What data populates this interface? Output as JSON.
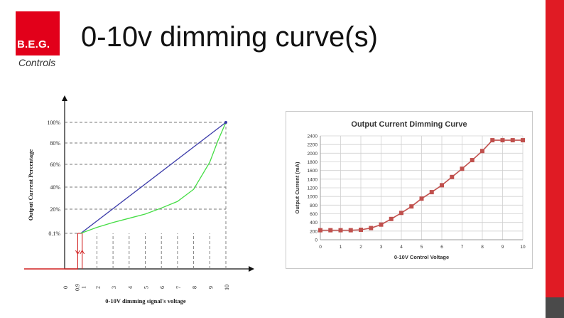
{
  "header": {
    "title": "0-10v dimming curve(s)",
    "logo_text": "B.E.G.",
    "logo_sub": "Controls"
  },
  "colors": {
    "accent": "#e01b24",
    "sidebar_bottom": "#4a4a4a",
    "linear": "#3a3aa8",
    "curve": "#44dd44",
    "marker": "#c0504d"
  },
  "chart_data": [
    {
      "type": "line",
      "xlabel": "0-10V dimming signal's voltage",
      "ylabel": "Output Current Percentage",
      "x_ticks": [
        "0",
        "0.9",
        "1",
        "2",
        "3",
        "4",
        "5",
        "6",
        "7",
        "8",
        "9",
        "10"
      ],
      "y_ticks": [
        "0.1%",
        "20%",
        "40%",
        "60%",
        "80%",
        "100%"
      ],
      "series": [
        {
          "color": "#3a3aa8",
          "x": [
            1,
            10
          ],
          "y": [
            0.1,
            100
          ]
        },
        {
          "color": "#44dd44",
          "x": [
            1,
            2,
            3,
            4,
            5,
            6,
            7,
            8,
            9,
            9.5,
            10
          ],
          "y": [
            0.1,
            5,
            9,
            12.5,
            16,
            21,
            27,
            38,
            62,
            82,
            100
          ]
        }
      ]
    },
    {
      "type": "line",
      "title": "Output Current Dimming Curve",
      "xlabel": "0-10V Control Voltage",
      "ylabel": "Output Current (mA)",
      "xlim": [
        0,
        10
      ],
      "ylim": [
        0,
        2400
      ],
      "x_ticks": [
        "0",
        "1",
        "2",
        "3",
        "4",
        "5",
        "6",
        "7",
        "8",
        "9",
        "10"
      ],
      "y_ticks": [
        "0",
        "200",
        "400",
        "600",
        "800",
        "1000",
        "1200",
        "1400",
        "1600",
        "1800",
        "2000",
        "2200",
        "2400"
      ],
      "series": [
        {
          "color": "#c0504d",
          "x": [
            0,
            0.5,
            1,
            1.5,
            2,
            2.5,
            3,
            3.5,
            4,
            4.5,
            5,
            5.5,
            6,
            6.5,
            7,
            7.5,
            8,
            8.5,
            9,
            9.5,
            10
          ],
          "y": [
            220,
            220,
            220,
            220,
            230,
            270,
            350,
            480,
            620,
            770,
            950,
            1100,
            1260,
            1450,
            1640,
            1840,
            2050,
            2300,
            2300,
            2300,
            2300
          ]
        }
      ]
    }
  ]
}
